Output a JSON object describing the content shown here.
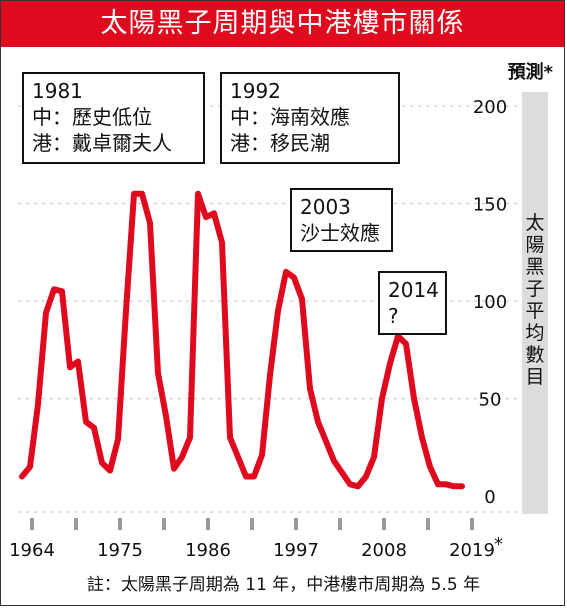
{
  "title": "太陽黑子周期與中港樓市關係",
  "forecast_label": "預測*",
  "footnote": "註：太陽黑子周期為 11 年，中港樓市周期為 5.5 年",
  "annotations": [
    {
      "year": "1981",
      "lines": [
        "中：歷史低位",
        "港：戴卓爾夫人"
      ]
    },
    {
      "year": "1992",
      "lines": [
        "中：海南效應",
        "港：移民潮"
      ]
    },
    {
      "year": "2003",
      "lines": [
        "沙士效應"
      ]
    },
    {
      "year": "2014",
      "lines": [
        "?"
      ]
    }
  ],
  "colors": {
    "title_bg": "#e00a1e",
    "line": "#e00a1e",
    "grid": "#cccccc",
    "band": "#dcdcdc"
  },
  "chart_data": {
    "type": "line",
    "title": "太陽黑子周期與中港樓市關係",
    "ylabel": "太陽黑子平均數目",
    "x_tick_labels": [
      "1964",
      "1975",
      "1986",
      "1997",
      "2008",
      "2019"
    ],
    "x_tick_asterisk": "*",
    "y_ticks": [
      0,
      50,
      100,
      150,
      200
    ],
    "ylim": [
      0,
      200
    ],
    "xlim": [
      1964,
      2020
    ],
    "grid": true,
    "series": [
      {
        "x": [
          1964,
          1965,
          1966,
          1967,
          1968,
          1969,
          1970,
          1971,
          1972,
          1973,
          1974,
          1975,
          1976,
          1977,
          1978,
          1979,
          1980,
          1981,
          1982,
          1983,
          1984,
          1985,
          1986,
          1987,
          1988,
          1989,
          1990,
          1991,
          1992,
          1993,
          1994,
          1995,
          1996,
          1997,
          1998,
          1999,
          2000,
          2001,
          2002,
          2003,
          2004,
          2005,
          2006,
          2007,
          2008,
          2009,
          2010,
          2011,
          2012,
          2013,
          2014,
          2015,
          2016,
          2017,
          2018,
          2019
        ],
        "values": [
          10,
          15,
          47,
          94,
          106,
          105,
          66,
          69,
          38,
          35,
          17,
          13,
          29,
          95,
          155,
          155,
          140,
          63,
          41,
          14,
          20,
          30,
          155,
          143,
          145,
          130,
          30,
          20,
          10,
          10,
          21,
          62,
          95,
          115,
          112,
          101,
          55,
          38,
          28,
          18,
          12,
          6,
          5,
          10,
          20,
          50,
          68,
          82,
          78,
          50,
          30,
          15,
          6,
          6,
          5,
          5
        ]
      }
    ]
  }
}
